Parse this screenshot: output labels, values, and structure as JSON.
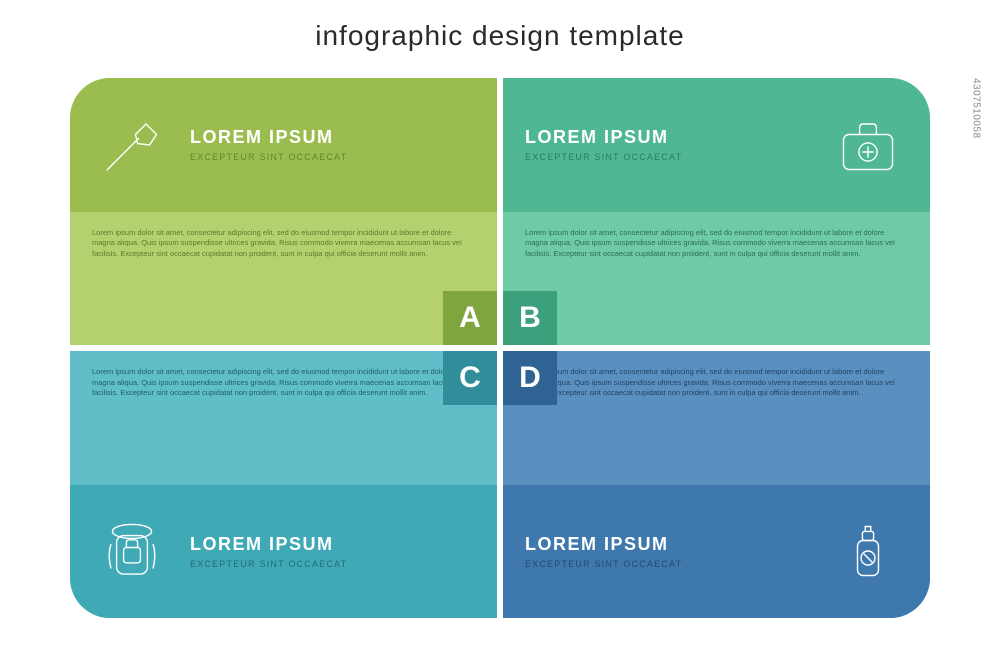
{
  "title": "infographic design template",
  "body_text": "Lorem ipsum dolor sit amet, consectetur adipiscing elit, sed do eiusmod tempor incididunt ut labore et dolore magna aliqua. Quis ipsum suspendisse ultrices gravida. Risus commodo viverra maecenas accumsan lacus vel facilisis. Excepteur sint occaecat cupidatat non proident, sunt in culpa qui officia deserunt mollit anim.",
  "heading": "LOREM IPSUM",
  "subheading": "EXCEPTEUR SINT OCCAECAT",
  "sidebar_id": "4307510058",
  "cards": {
    "a": {
      "letter": "A",
      "band_bg": "#9bbd4f",
      "body_bg": "#b5d16f",
      "letter_bg": "#7fa63e",
      "subheading_color": "#63852e",
      "body_text_color": "#5a7a2a",
      "icon": "axe",
      "letter_pos": "br",
      "band_pos": "top",
      "icon_side": "left"
    },
    "b": {
      "letter": "B",
      "band_bg": "#4fb893",
      "body_bg": "#6fcaa8",
      "letter_bg": "#3da07d",
      "subheading_color": "#2e7a5e",
      "body_text_color": "#2a6e55",
      "icon": "firstaid",
      "letter_pos": "bl",
      "band_pos": "top",
      "icon_side": "right"
    },
    "c": {
      "letter": "C",
      "band_bg": "#3fa9b5",
      "body_bg": "#5fbec8",
      "letter_bg": "#2f8e99",
      "subheading_color": "#236c75",
      "body_text_color": "#1f6068",
      "icon": "backpack",
      "letter_pos": "tr",
      "band_pos": "bottom",
      "icon_side": "left"
    },
    "d": {
      "letter": "D",
      "band_bg": "#3f78ad",
      "body_bg": "#5a90c0",
      "letter_bg": "#2f6394",
      "subheading_color": "#234a70",
      "body_text_color": "#1f4263",
      "icon": "spray",
      "letter_pos": "tl",
      "band_pos": "bottom",
      "icon_side": "right"
    }
  }
}
